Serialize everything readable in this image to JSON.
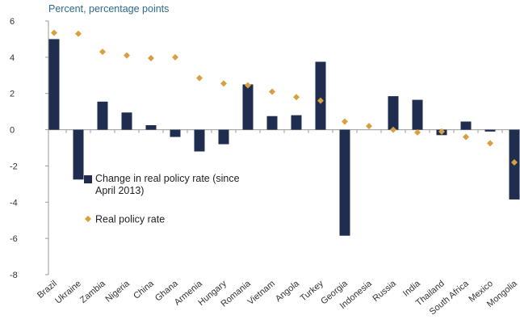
{
  "chart_data": {
    "type": "bar",
    "y_axis_label": "Percent, percentage points",
    "categories": [
      "Brazil",
      "Ukraine",
      "Zambia",
      "Nigeria",
      "China",
      "Ghana",
      "Armenia",
      "Hungary",
      "Romania",
      "Vietnam",
      "Angola",
      "Turkey",
      "Georgia",
      "Indonesia",
      "Russia",
      "India",
      "Thailand",
      "South Africa",
      "Mexico",
      "Mongolia"
    ],
    "series": [
      {
        "name": "Change in real policy rate (since April 2013)",
        "type": "bar",
        "color": "#1f2d4e",
        "values": [
          5.0,
          -2.75,
          1.55,
          0.95,
          0.25,
          -0.4,
          -1.2,
          -0.8,
          2.5,
          0.75,
          0.8,
          3.75,
          -5.85,
          0,
          1.85,
          1.65,
          -0.3,
          0.45,
          -0.1,
          -3.85
        ]
      },
      {
        "name": "Real policy rate",
        "type": "scatter",
        "color": "#d9a03f",
        "values": [
          5.35,
          5.3,
          4.3,
          4.1,
          3.95,
          4.0,
          2.85,
          2.55,
          2.45,
          2.1,
          1.8,
          1.6,
          0.45,
          0.2,
          0.0,
          -0.15,
          -0.1,
          -0.4,
          -0.75,
          -1.8
        ]
      }
    ],
    "ylim": [
      -8,
      6
    ],
    "yticks": [
      -8,
      -6,
      -4,
      -2,
      0,
      2,
      4,
      6
    ],
    "grid": false
  }
}
